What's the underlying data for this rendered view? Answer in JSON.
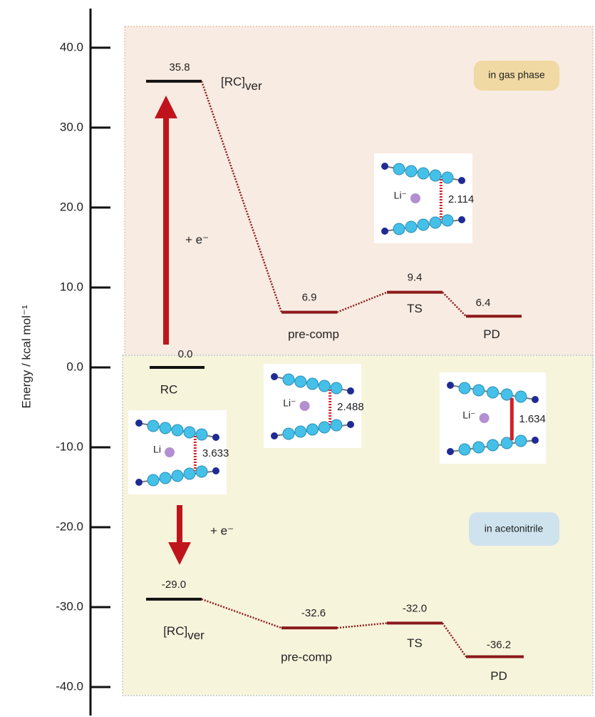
{
  "chart_data": {
    "type": "energy-diagram",
    "y_label": "Energy / kcal mol⁻¹",
    "ylim": [
      -43.3,
      44.9
    ],
    "yticks": [
      {
        "value": 40,
        "label": "40.0"
      },
      {
        "value": 30,
        "label": "30.0"
      },
      {
        "value": 20,
        "label": "20.0"
      },
      {
        "value": 10,
        "label": "10.0"
      },
      {
        "value": 0,
        "label": "0.0"
      },
      {
        "value": -10,
        "label": "-10.0"
      },
      {
        "value": -20,
        "label": "-20.0"
      },
      {
        "value": -30,
        "label": "-30.0"
      },
      {
        "value": -40,
        "label": "-40.0"
      }
    ],
    "series": [
      {
        "name": "in gas phase",
        "categories": [
          "RC",
          "[RC]ver",
          "pre-comp",
          "TS",
          "PD"
        ],
        "values": [
          0,
          35.8,
          6.9,
          9.4,
          6.4
        ],
        "value_labels": [
          "0.0",
          "35.8",
          "6.9",
          "9.4",
          "6.4"
        ],
        "colors": [
          "#111111",
          "#111111",
          "#8b1a1a",
          "#8b1a1a",
          "#8b1a1a"
        ],
        "electron_label": "+ e⁻"
      },
      {
        "name": "in acetonitrile",
        "categories": [
          "[RC]ver",
          "pre-comp",
          "TS",
          "PD"
        ],
        "values": [
          -29.0,
          -32.6,
          -32.0,
          -36.2
        ],
        "value_labels": [
          "-29.0",
          "-32.6",
          "-32.0",
          "-36.2"
        ],
        "colors": [
          "#111111",
          "#8b1a1a",
          "#8b1a1a",
          "#8b1a1a"
        ],
        "electron_label": "+ e⁻"
      }
    ],
    "insets": [
      {
        "ion": "Li⁻",
        "distance": "2.114"
      },
      {
        "ion": "Li",
        "distance": "3.633"
      },
      {
        "ion": "Li⁻",
        "distance": "2.488"
      },
      {
        "ion": "Li⁻",
        "distance": "1.634"
      }
    ]
  }
}
